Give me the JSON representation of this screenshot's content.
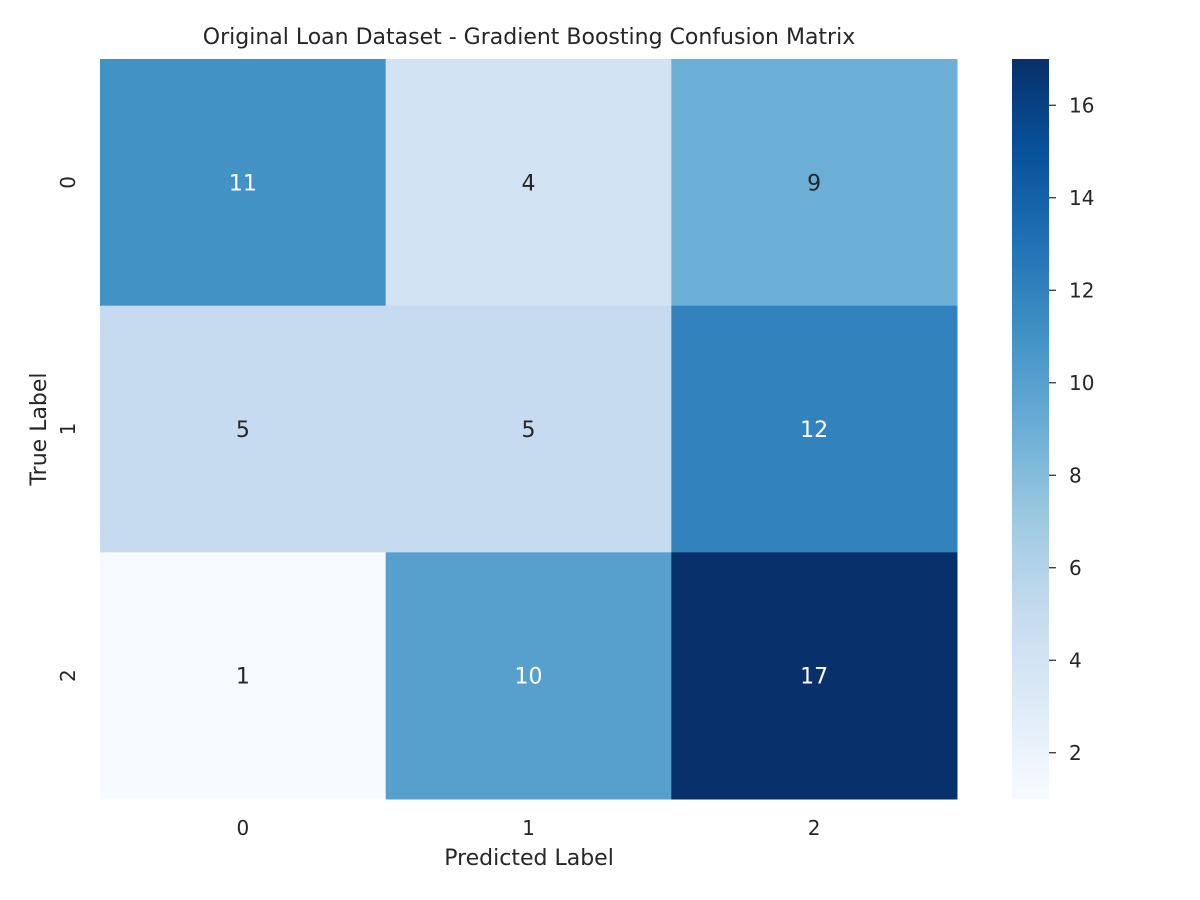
{
  "chart_data": {
    "type": "heatmap",
    "title": "Original Loan Dataset - Gradient Boosting Confusion Matrix",
    "xlabel": "Predicted Label",
    "ylabel": "True Label",
    "x_categories": [
      "0",
      "1",
      "2"
    ],
    "y_categories": [
      "0",
      "1",
      "2"
    ],
    "values": [
      [
        11,
        4,
        9
      ],
      [
        5,
        5,
        12
      ],
      [
        1,
        10,
        17
      ]
    ],
    "colormap": "Blues",
    "colorbar": {
      "range": [
        1,
        17
      ],
      "ticks": [
        2,
        4,
        6,
        8,
        10,
        12,
        14,
        16
      ]
    },
    "grid": false
  }
}
